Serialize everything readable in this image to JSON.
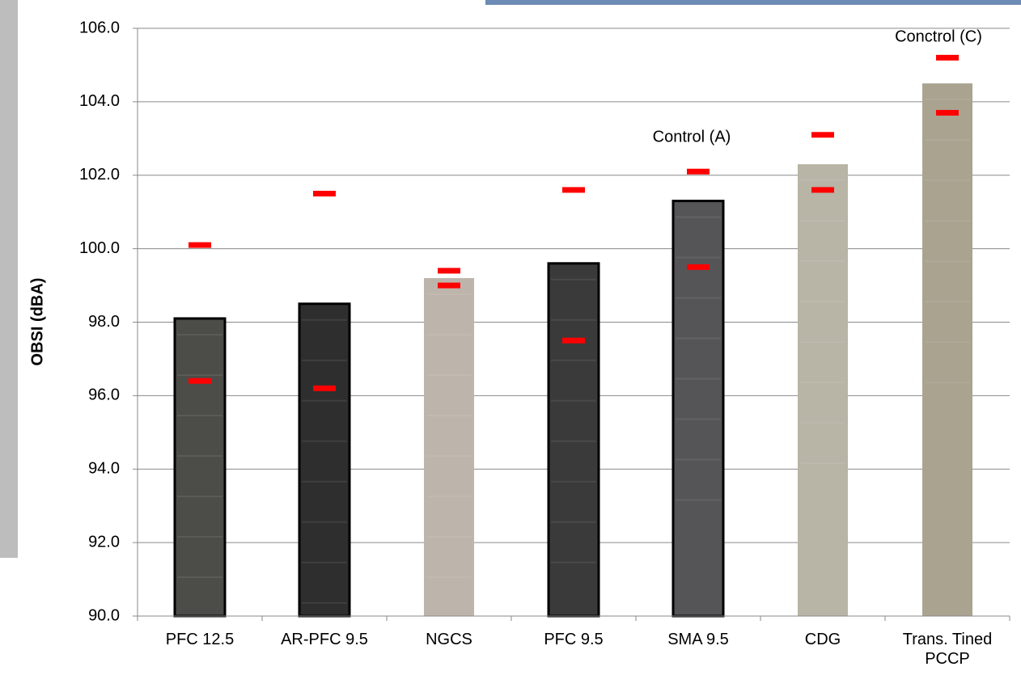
{
  "chart_data": {
    "type": "bar",
    "y_label": "OBSI (dBA)",
    "categories": [
      "PFC 12.5",
      "AR-PFC 9.5",
      "NGCS",
      "PFC 9.5",
      "SMA 9.5",
      "CDG",
      "Trans. Tined PCCP"
    ],
    "values": [
      98.1,
      98.5,
      99.2,
      99.6,
      101.3,
      102.3,
      104.5
    ],
    "colors": [
      "#4c4c49",
      "#2e2e2e",
      "#bdb5ab",
      "#3a3a3a",
      "#555558",
      "#b8b4a6",
      "#a9a390"
    ],
    "outlined": [
      true,
      true,
      false,
      true,
      true,
      false,
      false
    ],
    "markers": [
      {
        "color": "#ff0000",
        "values": [
          100.1,
          101.5,
          99.4,
          101.6,
          102.1,
          103.1,
          105.2
        ]
      },
      {
        "color": "#ff0000",
        "values": [
          96.4,
          96.2,
          99.0,
          97.5,
          99.5,
          101.6,
          103.7
        ]
      }
    ],
    "annotations": [
      "Control (A)",
      "Conctrol (C)"
    ],
    "ylim": [
      90,
      106
    ],
    "yticks": [
      {
        "value": 90,
        "label": "90.0"
      },
      {
        "value": 92,
        "label": "92.0"
      },
      {
        "value": 94,
        "label": "94.0"
      },
      {
        "value": 96,
        "label": "96.0"
      },
      {
        "value": 98,
        "label": "98.0"
      },
      {
        "value": 100,
        "label": "100.0"
      },
      {
        "value": 102,
        "label": "102.0"
      },
      {
        "value": 104,
        "label": "104.0"
      },
      {
        "value": 106,
        "label": "106.0"
      }
    ],
    "grid": true
  }
}
